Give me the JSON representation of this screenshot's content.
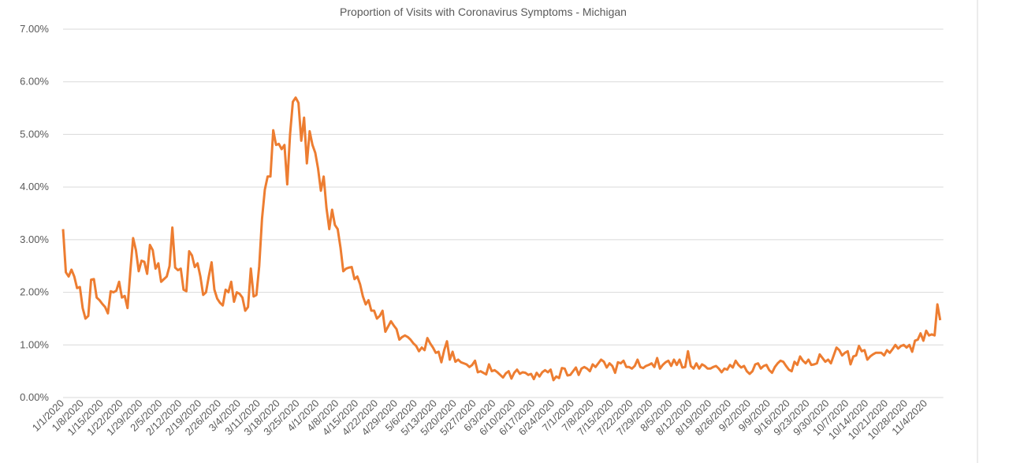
{
  "chart_data": {
    "type": "line",
    "title": "Proportion of Visits with Coronavirus Symptoms - Michigan",
    "categories": [
      "1/1/2020",
      null,
      null,
      null,
      null,
      null,
      null,
      "1/8/2020",
      null,
      null,
      null,
      null,
      null,
      null,
      "1/15/2020",
      null,
      null,
      null,
      null,
      null,
      null,
      "1/22/2020",
      null,
      null,
      null,
      null,
      null,
      null,
      "1/29/2020",
      null,
      null,
      null,
      null,
      null,
      null,
      "2/5/2020",
      null,
      null,
      null,
      null,
      null,
      null,
      "2/12/2020",
      null,
      null,
      null,
      null,
      null,
      null,
      "2/19/2020",
      null,
      null,
      null,
      null,
      null,
      null,
      "2/26/2020",
      null,
      null,
      null,
      null,
      null,
      null,
      "3/4/2020",
      null,
      null,
      null,
      null,
      null,
      null,
      "3/11/2020",
      null,
      null,
      null,
      null,
      null,
      null,
      "3/18/2020",
      null,
      null,
      null,
      null,
      null,
      null,
      "3/25/2020",
      null,
      null,
      null,
      null,
      null,
      null,
      "4/1/2020",
      null,
      null,
      null,
      null,
      null,
      null,
      "4/8/2020",
      null,
      null,
      null,
      null,
      null,
      null,
      "4/15/2020",
      null,
      null,
      null,
      null,
      null,
      null,
      "4/22/2020",
      null,
      null,
      null,
      null,
      null,
      null,
      "4/29/2020",
      null,
      null,
      null,
      null,
      null,
      null,
      "5/6/2020",
      null,
      null,
      null,
      null,
      null,
      null,
      "5/13/2020",
      null,
      null,
      null,
      null,
      null,
      null,
      "5/20/2020",
      null,
      null,
      null,
      null,
      null,
      null,
      "5/27/2020",
      null,
      null,
      null,
      null,
      null,
      null,
      "6/3/2020",
      null,
      null,
      null,
      null,
      null,
      null,
      "6/10/2020",
      null,
      null,
      null,
      null,
      null,
      null,
      "6/17/2020",
      null,
      null,
      null,
      null,
      null,
      null,
      "6/24/2020",
      null,
      null,
      null,
      null,
      null,
      null,
      "7/1/2020",
      null,
      null,
      null,
      null,
      null,
      null,
      "7/8/2020",
      null,
      null,
      null,
      null,
      null,
      null,
      "7/15/2020",
      null,
      null,
      null,
      null,
      null,
      null,
      "7/22/2020",
      null,
      null,
      null,
      null,
      null,
      null,
      "7/29/2020",
      null,
      null,
      null,
      null,
      null,
      null,
      "8/5/2020",
      null,
      null,
      null,
      null,
      null,
      null,
      "8/12/2020",
      null,
      null,
      null,
      null,
      null,
      null,
      "8/19/2020",
      null,
      null,
      null,
      null,
      null,
      null,
      "8/26/2020",
      null,
      null,
      null,
      null,
      null,
      null,
      "9/2/2020",
      null,
      null,
      null,
      null,
      null,
      null,
      "9/9/2020",
      null,
      null,
      null,
      null,
      null,
      null,
      "9/16/2020",
      null,
      null,
      null,
      null,
      null,
      null,
      "9/23/2020",
      null,
      null,
      null,
      null,
      null,
      null,
      "9/30/2020",
      null,
      null,
      null,
      null,
      null,
      null,
      "10/7/2020",
      null,
      null,
      null,
      null,
      null,
      null,
      "10/14/2020",
      null,
      null,
      null,
      null,
      null,
      null,
      "10/21/2020",
      null,
      null,
      null,
      null,
      null,
      null,
      "10/28/2020",
      null,
      null,
      null,
      null,
      null,
      null,
      "11/4/2020",
      null,
      null,
      null,
      null,
      null
    ],
    "values": [
      3.2,
      2.38,
      2.3,
      2.43,
      2.3,
      2.08,
      2.1,
      1.7,
      1.5,
      1.55,
      2.24,
      2.25,
      1.9,
      1.85,
      1.78,
      1.72,
      1.6,
      2.02,
      2.0,
      2.03,
      2.2,
      1.9,
      1.93,
      1.7,
      2.4,
      3.03,
      2.8,
      2.4,
      2.6,
      2.58,
      2.35,
      2.9,
      2.8,
      2.45,
      2.55,
      2.2,
      2.25,
      2.3,
      2.5,
      3.23,
      2.47,
      2.42,
      2.45,
      2.05,
      2.02,
      2.78,
      2.7,
      2.48,
      2.55,
      2.3,
      1.95,
      2.0,
      2.3,
      2.57,
      2.05,
      1.88,
      1.8,
      1.75,
      2.05,
      2.0,
      2.2,
      1.82,
      2.0,
      1.97,
      1.9,
      1.65,
      1.72,
      2.45,
      1.92,
      1.95,
      2.5,
      3.4,
      3.95,
      4.2,
      4.2,
      5.08,
      4.8,
      4.82,
      4.72,
      4.8,
      4.05,
      5.0,
      5.62,
      5.7,
      5.6,
      4.88,
      5.32,
      4.45,
      5.06,
      4.8,
      4.65,
      4.35,
      3.93,
      4.2,
      3.6,
      3.2,
      3.57,
      3.28,
      3.2,
      2.85,
      2.4,
      2.45,
      2.47,
      2.48,
      2.25,
      2.3,
      2.15,
      1.92,
      1.77,
      1.85,
      1.65,
      1.65,
      1.5,
      1.55,
      1.65,
      1.25,
      1.35,
      1.45,
      1.37,
      1.3,
      1.1,
      1.15,
      1.18,
      1.15,
      1.1,
      1.03,
      0.98,
      0.88,
      0.95,
      0.9,
      1.13,
      1.03,
      0.95,
      0.85,
      0.87,
      0.67,
      0.9,
      1.07,
      0.72,
      0.87,
      0.68,
      0.72,
      0.67,
      0.65,
      0.63,
      0.58,
      0.62,
      0.7,
      0.48,
      0.5,
      0.47,
      0.44,
      0.63,
      0.5,
      0.52,
      0.48,
      0.43,
      0.38,
      0.46,
      0.5,
      0.36,
      0.47,
      0.53,
      0.45,
      0.48,
      0.47,
      0.43,
      0.45,
      0.35,
      0.47,
      0.4,
      0.48,
      0.52,
      0.48,
      0.53,
      0.33,
      0.4,
      0.37,
      0.56,
      0.55,
      0.42,
      0.43,
      0.5,
      0.57,
      0.43,
      0.55,
      0.58,
      0.55,
      0.5,
      0.63,
      0.58,
      0.65,
      0.72,
      0.68,
      0.57,
      0.65,
      0.6,
      0.47,
      0.67,
      0.65,
      0.7,
      0.58,
      0.58,
      0.55,
      0.6,
      0.72,
      0.58,
      0.56,
      0.6,
      0.62,
      0.65,
      0.58,
      0.75,
      0.55,
      0.62,
      0.67,
      0.7,
      0.6,
      0.72,
      0.62,
      0.72,
      0.57,
      0.58,
      0.88,
      0.6,
      0.55,
      0.65,
      0.55,
      0.63,
      0.6,
      0.55,
      0.55,
      0.58,
      0.6,
      0.55,
      0.48,
      0.55,
      0.53,
      0.62,
      0.57,
      0.7,
      0.62,
      0.57,
      0.6,
      0.5,
      0.45,
      0.5,
      0.63,
      0.65,
      0.55,
      0.6,
      0.62,
      0.52,
      0.47,
      0.58,
      0.65,
      0.7,
      0.68,
      0.6,
      0.53,
      0.5,
      0.68,
      0.62,
      0.78,
      0.7,
      0.65,
      0.72,
      0.62,
      0.63,
      0.65,
      0.82,
      0.75,
      0.68,
      0.72,
      0.65,
      0.8,
      0.95,
      0.9,
      0.8,
      0.85,
      0.88,
      0.63,
      0.78,
      0.8,
      0.98,
      0.88,
      0.9,
      0.72,
      0.78,
      0.82,
      0.85,
      0.85,
      0.85,
      0.8,
      0.9,
      0.85,
      0.92,
      1.0,
      0.93,
      0.98,
      1.0,
      0.95,
      1.0,
      0.87,
      1.08,
      1.1,
      1.22,
      1.08,
      1.27,
      1.18,
      1.2,
      1.18,
      1.77,
      1.47
    ],
    "color": "#ed7d31",
    "ylim": [
      0,
      7
    ],
    "yticks": [
      {
        "value": 0,
        "label": "0.00%"
      },
      {
        "value": 1,
        "label": "1.00%"
      },
      {
        "value": 2,
        "label": "2.00%"
      },
      {
        "value": 3,
        "label": "3.00%"
      },
      {
        "value": 4,
        "label": "4.00%"
      },
      {
        "value": 5,
        "label": "5.00%"
      },
      {
        "value": 6,
        "label": "6.00%"
      },
      {
        "value": 7,
        "label": "7.00%"
      }
    ],
    "grid": true
  }
}
